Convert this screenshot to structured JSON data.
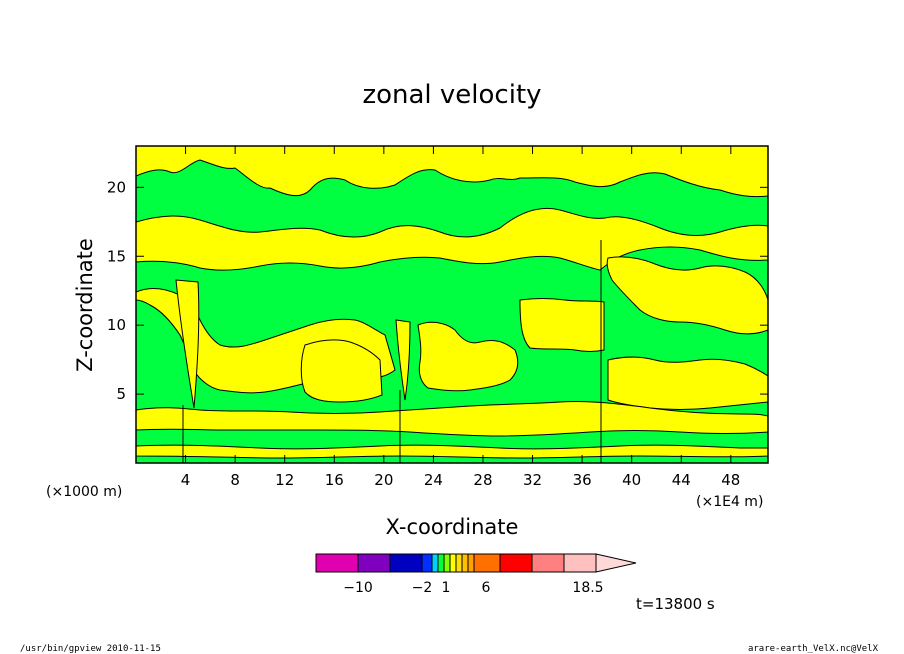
{
  "chart_data": {
    "type": "heatmap",
    "title": "zonal velocity",
    "xlabel": "X-coordinate",
    "ylabel": "Z-coordinate",
    "x_unit": "(×1E4 m)",
    "y_unit": "(×1000 m)",
    "xlim": [
      0,
      51
    ],
    "ylim": [
      0,
      23
    ],
    "x_ticks": [
      4,
      8,
      12,
      16,
      20,
      24,
      28,
      32,
      36,
      40,
      44,
      48
    ],
    "y_ticks": [
      5,
      10,
      15,
      20
    ],
    "x_tick_labels": [
      "4",
      "8",
      "12",
      "16",
      "20",
      "24",
      "28",
      "32",
      "36",
      "40",
      "44",
      "48"
    ],
    "y_tick_labels": [
      "5",
      "10",
      "15",
      "20"
    ],
    "colorbar": {
      "colors": [
        "#e000b0",
        "#8000c0",
        "#0000c0",
        "#0030ff",
        "#00d0ff",
        "#00ff40",
        "#80ff00",
        "#ffff00",
        "#ffe000",
        "#ffc000",
        "#ffa000",
        "#ff7000",
        "#ff0000",
        "#ff8080",
        "#ffc0c0",
        "#ffd8d8"
      ],
      "labels": [
        "−10",
        "−2",
        "1",
        "6",
        "18.5"
      ]
    },
    "time_label": "t=13800 s",
    "dominant_colors": {
      "green": "#00ff40",
      "yellow": "#ffff00"
    }
  },
  "footer": {
    "left": "/usr/bin/gpview   2010-11-15",
    "right": "arare-earth_VelX.nc@VelX"
  }
}
